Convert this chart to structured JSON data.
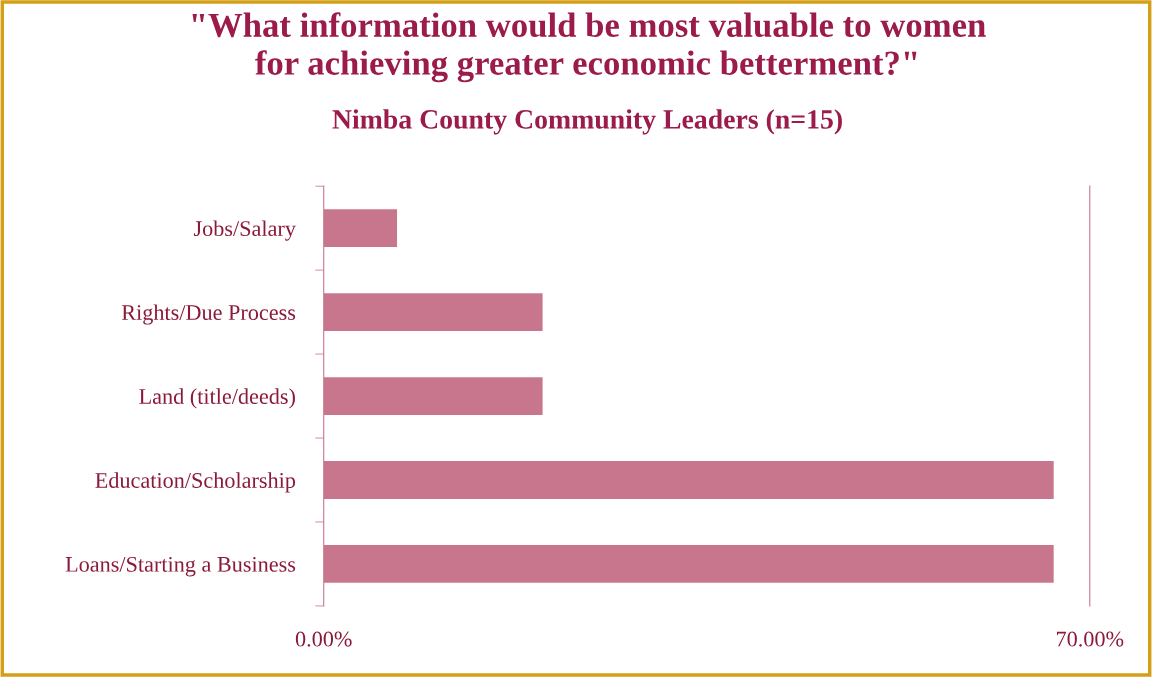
{
  "chart_data": {
    "type": "bar",
    "orientation": "horizontal",
    "title": "\"What information would be most valuable to women\nfor achieving greater economic betterment?\"",
    "subtitle": "Nimba County Community Leaders (n=15)",
    "categories": [
      "Jobs/Salary",
      "Rights/Due Process",
      "Land (title/deeds)",
      "Education/Scholarship",
      "Loans/Starting a Business"
    ],
    "values": [
      6.7,
      20,
      20,
      66.7,
      66.7
    ],
    "color": "#c8768e",
    "xlim": [
      0,
      70
    ],
    "xticks": [
      {
        "value": 0,
        "label": "0.00%"
      },
      {
        "value": 70,
        "label": "70.00%"
      }
    ],
    "grid": false,
    "legend": false
  }
}
